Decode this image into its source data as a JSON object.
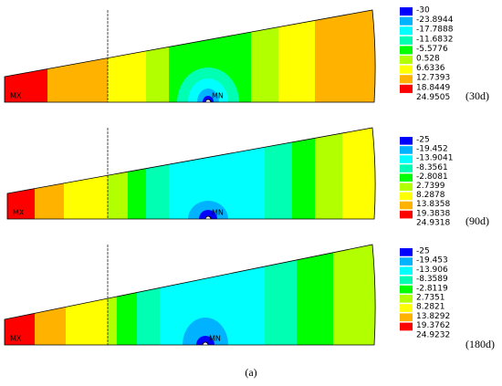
{
  "panels": [
    {
      "legend": [
        "-30",
        "-23.8944",
        "-17.7888",
        "-11.6832",
        "-5.5776",
        "0.528",
        "6.6336",
        "12.7393",
        "18.8449",
        "24.9505"
      ],
      "label": "(30d)",
      "node_max": "MX",
      "node_min": "MN"
    },
    {
      "legend": [
        "-25",
        "-19.452",
        "-13.9041",
        "-8.3561",
        "-2.8081",
        "2.7399",
        "8.2878",
        "13.8358",
        "19.3838",
        "24.9318"
      ],
      "label": "(90d)",
      "node_max": "MX",
      "node_min": "MN"
    },
    {
      "legend": [
        "-25",
        "-19.453",
        "-13.906",
        "-8.3589",
        "-2.8119",
        "2.7351",
        "8.2821",
        "13.8292",
        "19.3762",
        "24.9232"
      ],
      "label": "(180d)",
      "node_max": "MX",
      "node_min": "MN"
    }
  ],
  "legend_colors": [
    "#0000ff",
    "#00b2ff",
    "#00ffff",
    "#00ffb2",
    "#00ff00",
    "#b2ff00",
    "#ffff00",
    "#ffb200",
    "#ff0000"
  ],
  "caption": "(a)"
}
